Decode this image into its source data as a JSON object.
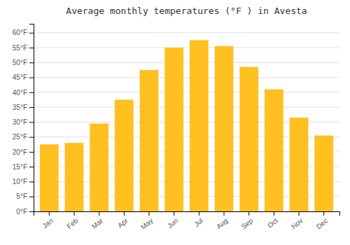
{
  "chart_data": {
    "type": "bar",
    "title": "Average monthly temperatures (°F ) in Avesta",
    "categories": [
      "Jan",
      "Feb",
      "Mar",
      "Apr",
      "May",
      "Jun",
      "Jul",
      "Aug",
      "Sep",
      "Oct",
      "Nov",
      "Dec"
    ],
    "values": [
      22.5,
      23.0,
      29.5,
      37.5,
      47.5,
      55.0,
      57.5,
      55.5,
      48.5,
      41.0,
      31.5,
      25.5
    ],
    "color": "#FFC020",
    "ylim": [
      0,
      63
    ],
    "yticks": [
      {
        "value": 0,
        "label": "0°F"
      },
      {
        "value": 5,
        "label": "5°F"
      },
      {
        "value": 10,
        "label": "10°F"
      },
      {
        "value": 15,
        "label": "15°F"
      },
      {
        "value": 20,
        "label": "20°F"
      },
      {
        "value": 25,
        "label": "25°F"
      },
      {
        "value": 30,
        "label": "30°F"
      },
      {
        "value": 35,
        "label": "35°F"
      },
      {
        "value": 40,
        "label": "40°F"
      },
      {
        "value": 45,
        "label": "45°F"
      },
      {
        "value": 50,
        "label": "50°F"
      },
      {
        "value": 55,
        "label": "55°F"
      },
      {
        "value": 60,
        "label": "60°F"
      }
    ],
    "grid": true
  }
}
